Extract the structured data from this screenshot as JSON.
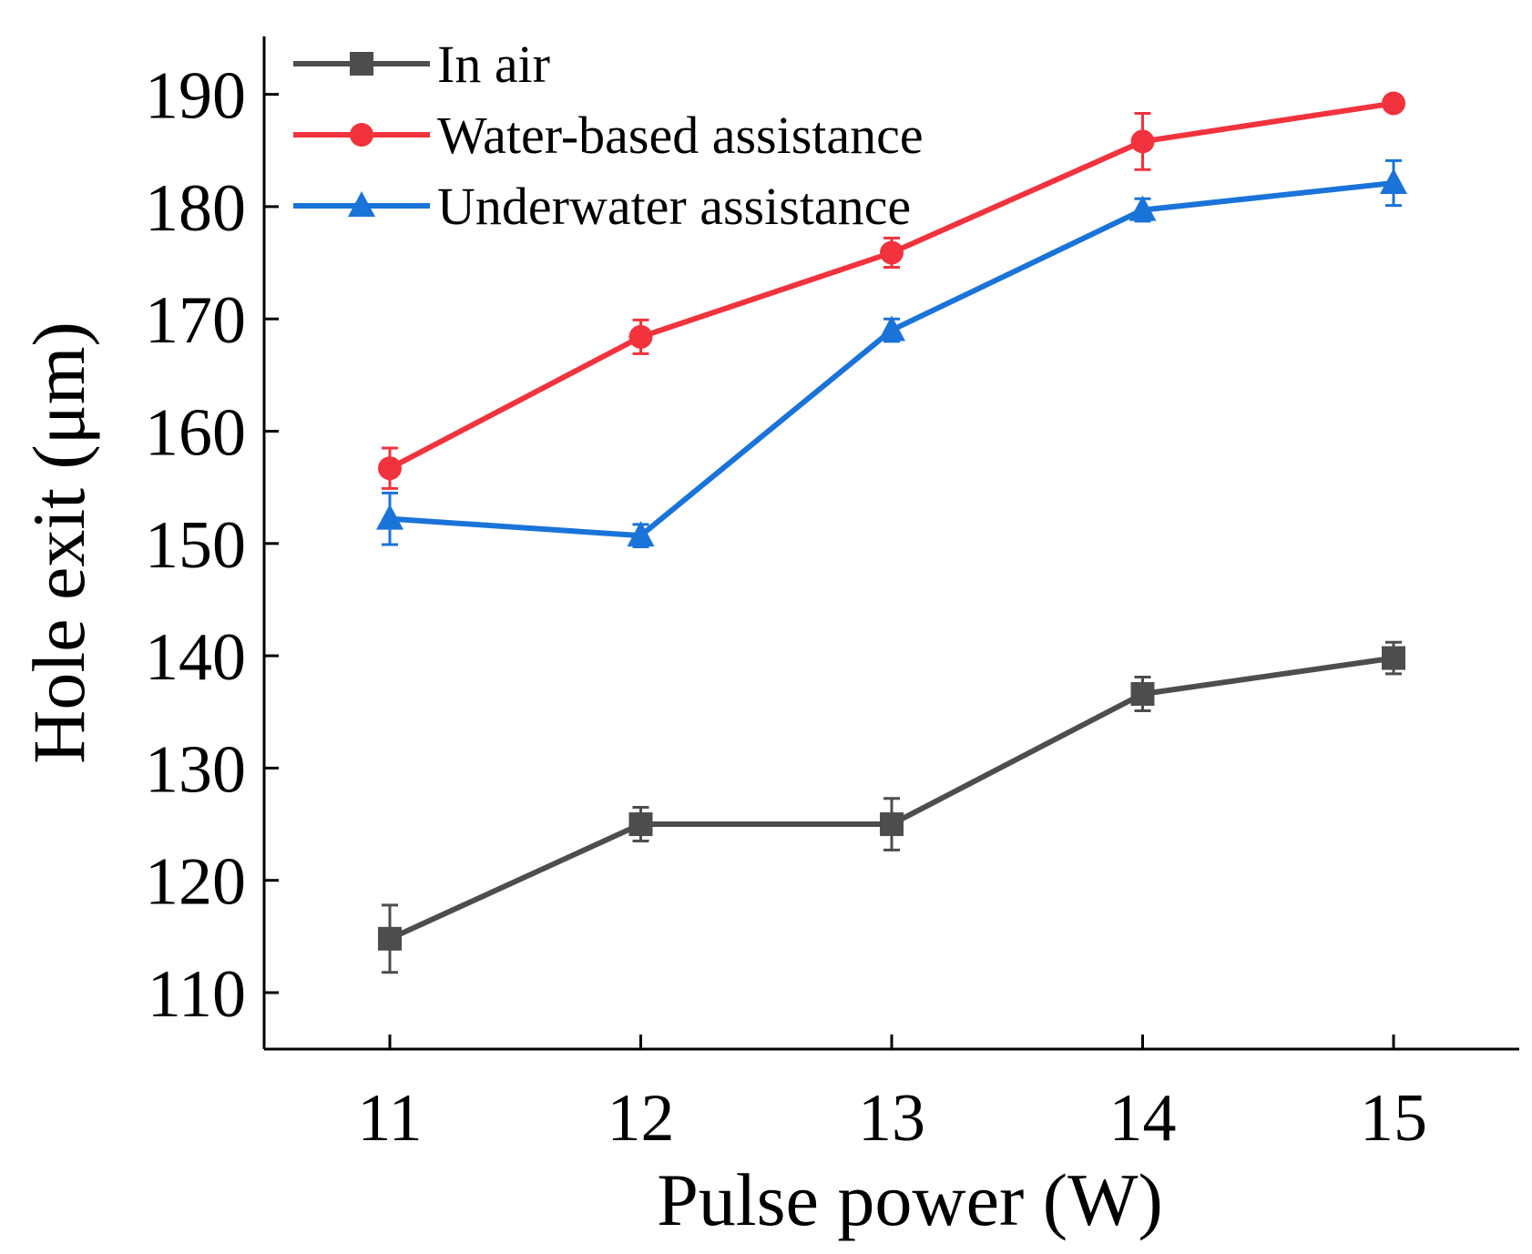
{
  "chart_data": {
    "type": "line",
    "xlabel": "Pulse power (W)",
    "ylabel": "Hole exit (μm)",
    "x": [
      11,
      12,
      13,
      14,
      15
    ],
    "xticks": [
      "11",
      "12",
      "13",
      "14",
      "15"
    ],
    "xlim": [
      10.5,
      15.5
    ],
    "ylim": [
      105,
      195
    ],
    "yticks": [
      "110",
      "120",
      "130",
      "140",
      "150",
      "160",
      "170",
      "180",
      "190"
    ],
    "grid": false,
    "legend_position": "top-left",
    "series": [
      {
        "name": "In air",
        "color": "#4d4d4d",
        "marker": "square",
        "values": [
          114.8,
          125.0,
          125.0,
          136.6,
          139.8
        ],
        "errors": [
          3.0,
          1.5,
          2.3,
          1.5,
          1.4
        ]
      },
      {
        "name": "Water-based assistance",
        "color": "#f2333d",
        "marker": "circle",
        "values": [
          156.7,
          168.4,
          175.9,
          185.8,
          189.2
        ],
        "errors": [
          1.8,
          1.5,
          1.3,
          2.5,
          0.5
        ]
      },
      {
        "name": "Underwater assistance",
        "color": "#1a73d9",
        "marker": "triangle",
        "values": [
          152.2,
          150.7,
          169.0,
          179.7,
          182.1
        ],
        "errors": [
          2.3,
          1.0,
          1.0,
          1.0,
          2.0
        ]
      }
    ]
  }
}
